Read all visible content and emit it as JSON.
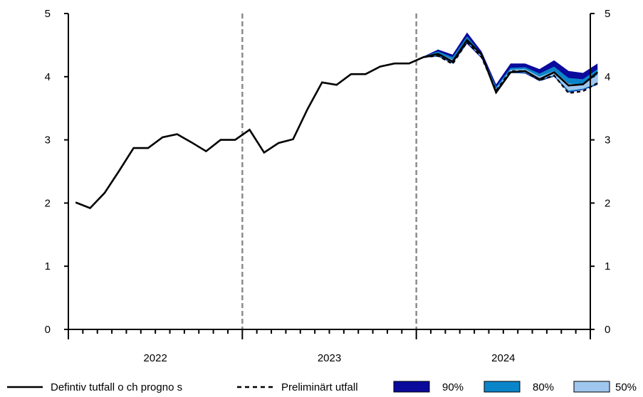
{
  "chart_data": {
    "type": "line",
    "x_start": "2022-01",
    "x_tick_labels": [
      "2022",
      "2023",
      "2024"
    ],
    "ylim": [
      0,
      5
    ],
    "y_ticks": [
      "0",
      "1",
      "2",
      "3",
      "4",
      "5"
    ],
    "y_ticks_right": [
      "0",
      "1",
      "2",
      "3",
      "4",
      "5"
    ],
    "grid": false,
    "vertical_dividers": [
      "2023-01",
      "2024-01"
    ],
    "series": [
      {
        "name": "Defintiv tutfall o ch progno s",
        "style": "solid",
        "color": "#000000",
        "values": [
          2.01,
          1.92,
          2.16,
          2.51,
          2.87,
          2.87,
          3.04,
          3.09,
          2.96,
          2.82,
          3.0,
          3.0,
          3.16,
          2.8,
          2.95,
          3.01,
          3.49,
          3.91,
          3.87,
          4.04,
          4.04,
          4.16,
          4.21,
          4.21,
          4.31,
          4.36,
          4.24,
          4.58,
          4.35,
          3.75,
          4.07,
          4.09,
          3.96,
          4.07,
          3.86,
          3.88,
          4.07
        ]
      },
      {
        "name": "Preliminärt utfall",
        "style": "dashed",
        "color": "#000000",
        "start_index": 24,
        "values": [
          4.31,
          4.33,
          4.2,
          4.55,
          4.31,
          3.78,
          4.09,
          4.09,
          3.94,
          4.02,
          3.74,
          3.77,
          3.9
        ]
      }
    ],
    "fan": {
      "start_index": 24,
      "bands": [
        {
          "name": "90%",
          "color": "#0a0a9c",
          "upper": [
            4.32,
            4.43,
            4.35,
            4.7,
            4.4,
            3.88,
            4.21,
            4.21,
            4.12,
            4.26,
            4.09,
            4.06,
            4.21
          ],
          "lower": [
            4.3,
            4.32,
            4.21,
            4.52,
            4.29,
            3.78,
            4.06,
            4.05,
            3.93,
            4.0,
            3.75,
            3.79,
            3.87
          ]
        },
        {
          "name": "80%",
          "color": "#0b85c9",
          "upper": [
            4.32,
            4.4,
            4.31,
            4.64,
            4.36,
            3.84,
            4.14,
            4.15,
            4.05,
            4.16,
            3.98,
            3.96,
            4.12
          ],
          "lower": [
            4.3,
            4.33,
            4.22,
            4.54,
            4.3,
            3.79,
            4.06,
            4.06,
            3.94,
            4.01,
            3.76,
            3.8,
            3.88
          ]
        },
        {
          "name": "50%",
          "color": "#9fc6ee",
          "upper": [
            4.31,
            4.37,
            4.27,
            4.6,
            4.34,
            3.81,
            4.11,
            4.12,
            4.0,
            4.09,
            3.89,
            3.88,
            4.03
          ],
          "lower": [
            4.3,
            4.34,
            4.23,
            4.55,
            4.31,
            3.79,
            4.07,
            4.07,
            3.95,
            4.02,
            3.78,
            3.81,
            3.9
          ]
        }
      ]
    },
    "legend": {
      "placement": "bottom",
      "items": [
        "Defintiv tutfall o ch progno s",
        "Preliminärt utfall",
        "90%",
        "80%",
        "50%"
      ]
    }
  }
}
